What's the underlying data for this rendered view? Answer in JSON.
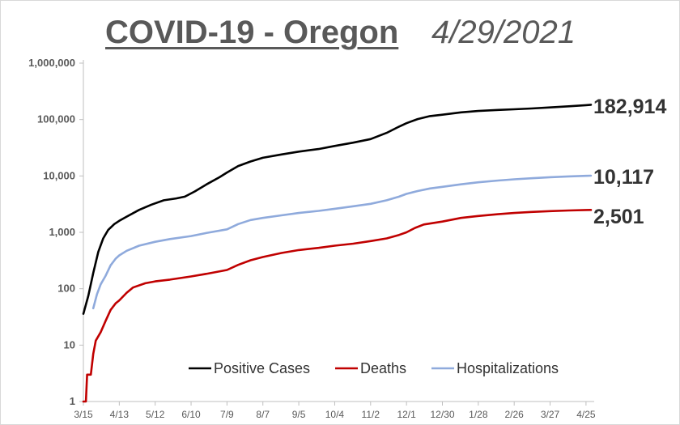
{
  "title": {
    "main": "COVID-19  - Oregon",
    "date": "4/29/2021"
  },
  "chart_data": {
    "type": "line",
    "y_scale": "log",
    "ylim": [
      1,
      1000000
    ],
    "y_ticks": [
      1,
      10,
      100,
      1000,
      10000,
      100000,
      1000000
    ],
    "y_tick_labels": [
      "1",
      "10",
      "100",
      "1,000",
      "10,000",
      "100,000",
      "1,000,000"
    ],
    "x_ticks": [
      "3/15",
      "4/13",
      "5/12",
      "6/10",
      "7/9",
      "8/7",
      "9/5",
      "10/4",
      "11/2",
      "12/1",
      "12/30",
      "1/28",
      "2/26",
      "3/27",
      "4/25"
    ],
    "x_tick_days": [
      0,
      29,
      58,
      87,
      116,
      145,
      174,
      203,
      232,
      261,
      290,
      319,
      348,
      377,
      406
    ],
    "x_range_days": [
      0,
      410
    ],
    "colors": {
      "cases": "#000000",
      "deaths": "#c00000",
      "hosp": "#8faadc",
      "axis": "#bfbfbf"
    },
    "series": [
      {
        "key": "cases",
        "name": "Positive Cases",
        "end_label": "182,914",
        "points": [
          [
            0,
            36
          ],
          [
            4,
            75
          ],
          [
            8,
            190
          ],
          [
            12,
            450
          ],
          [
            16,
            780
          ],
          [
            20,
            1100
          ],
          [
            25,
            1400
          ],
          [
            29,
            1600
          ],
          [
            35,
            1900
          ],
          [
            45,
            2500
          ],
          [
            55,
            3100
          ],
          [
            65,
            3700
          ],
          [
            75,
            4000
          ],
          [
            82,
            4300
          ],
          [
            90,
            5300
          ],
          [
            100,
            7200
          ],
          [
            110,
            9500
          ],
          [
            116,
            11500
          ],
          [
            125,
            15000
          ],
          [
            135,
            18000
          ],
          [
            145,
            21000
          ],
          [
            160,
            24000
          ],
          [
            174,
            27000
          ],
          [
            190,
            30000
          ],
          [
            203,
            34000
          ],
          [
            218,
            39000
          ],
          [
            232,
            45000
          ],
          [
            245,
            58000
          ],
          [
            255,
            75000
          ],
          [
            261,
            86000
          ],
          [
            270,
            102000
          ],
          [
            280,
            115000
          ],
          [
            290,
            122000
          ],
          [
            305,
            134000
          ],
          [
            319,
            142000
          ],
          [
            335,
            148000
          ],
          [
            348,
            152000
          ],
          [
            362,
            157000
          ],
          [
            377,
            164000
          ],
          [
            392,
            172000
          ],
          [
            406,
            180000
          ],
          [
            410,
            182914
          ]
        ]
      },
      {
        "key": "deaths",
        "name": "Deaths",
        "end_label": "2,501",
        "points": [
          [
            0,
            1
          ],
          [
            2,
            1
          ],
          [
            3,
            3
          ],
          [
            6,
            3
          ],
          [
            8,
            7
          ],
          [
            10,
            12
          ],
          [
            14,
            17
          ],
          [
            18,
            27
          ],
          [
            22,
            42
          ],
          [
            26,
            55
          ],
          [
            29,
            62
          ],
          [
            35,
            85
          ],
          [
            40,
            105
          ],
          [
            50,
            125
          ],
          [
            58,
            135
          ],
          [
            70,
            145
          ],
          [
            87,
            165
          ],
          [
            100,
            185
          ],
          [
            116,
            215
          ],
          [
            125,
            265
          ],
          [
            135,
            320
          ],
          [
            145,
            365
          ],
          [
            160,
            430
          ],
          [
            174,
            485
          ],
          [
            190,
            530
          ],
          [
            203,
            580
          ],
          [
            218,
            630
          ],
          [
            232,
            700
          ],
          [
            245,
            780
          ],
          [
            255,
            900
          ],
          [
            261,
            1000
          ],
          [
            268,
            1200
          ],
          [
            275,
            1380
          ],
          [
            290,
            1550
          ],
          [
            305,
            1800
          ],
          [
            319,
            1950
          ],
          [
            335,
            2100
          ],
          [
            348,
            2200
          ],
          [
            362,
            2300
          ],
          [
            377,
            2380
          ],
          [
            392,
            2440
          ],
          [
            406,
            2490
          ],
          [
            410,
            2501
          ]
        ]
      },
      {
        "key": "hosp",
        "name": "Hospitalizations",
        "end_label": "10,117",
        "points": [
          [
            8,
            45
          ],
          [
            11,
            80
          ],
          [
            14,
            120
          ],
          [
            18,
            170
          ],
          [
            22,
            260
          ],
          [
            26,
            340
          ],
          [
            29,
            390
          ],
          [
            35,
            470
          ],
          [
            45,
            580
          ],
          [
            58,
            680
          ],
          [
            70,
            760
          ],
          [
            87,
            860
          ],
          [
            100,
            980
          ],
          [
            116,
            1130
          ],
          [
            125,
            1400
          ],
          [
            135,
            1650
          ],
          [
            145,
            1800
          ],
          [
            160,
            2000
          ],
          [
            174,
            2200
          ],
          [
            190,
            2400
          ],
          [
            203,
            2620
          ],
          [
            218,
            2900
          ],
          [
            232,
            3200
          ],
          [
            245,
            3700
          ],
          [
            255,
            4300
          ],
          [
            261,
            4800
          ],
          [
            270,
            5400
          ],
          [
            280,
            6000
          ],
          [
            290,
            6400
          ],
          [
            305,
            7100
          ],
          [
            319,
            7700
          ],
          [
            335,
            8300
          ],
          [
            348,
            8700
          ],
          [
            362,
            9100
          ],
          [
            377,
            9500
          ],
          [
            392,
            9800
          ],
          [
            406,
            10050
          ],
          [
            410,
            10117
          ]
        ]
      }
    ]
  }
}
